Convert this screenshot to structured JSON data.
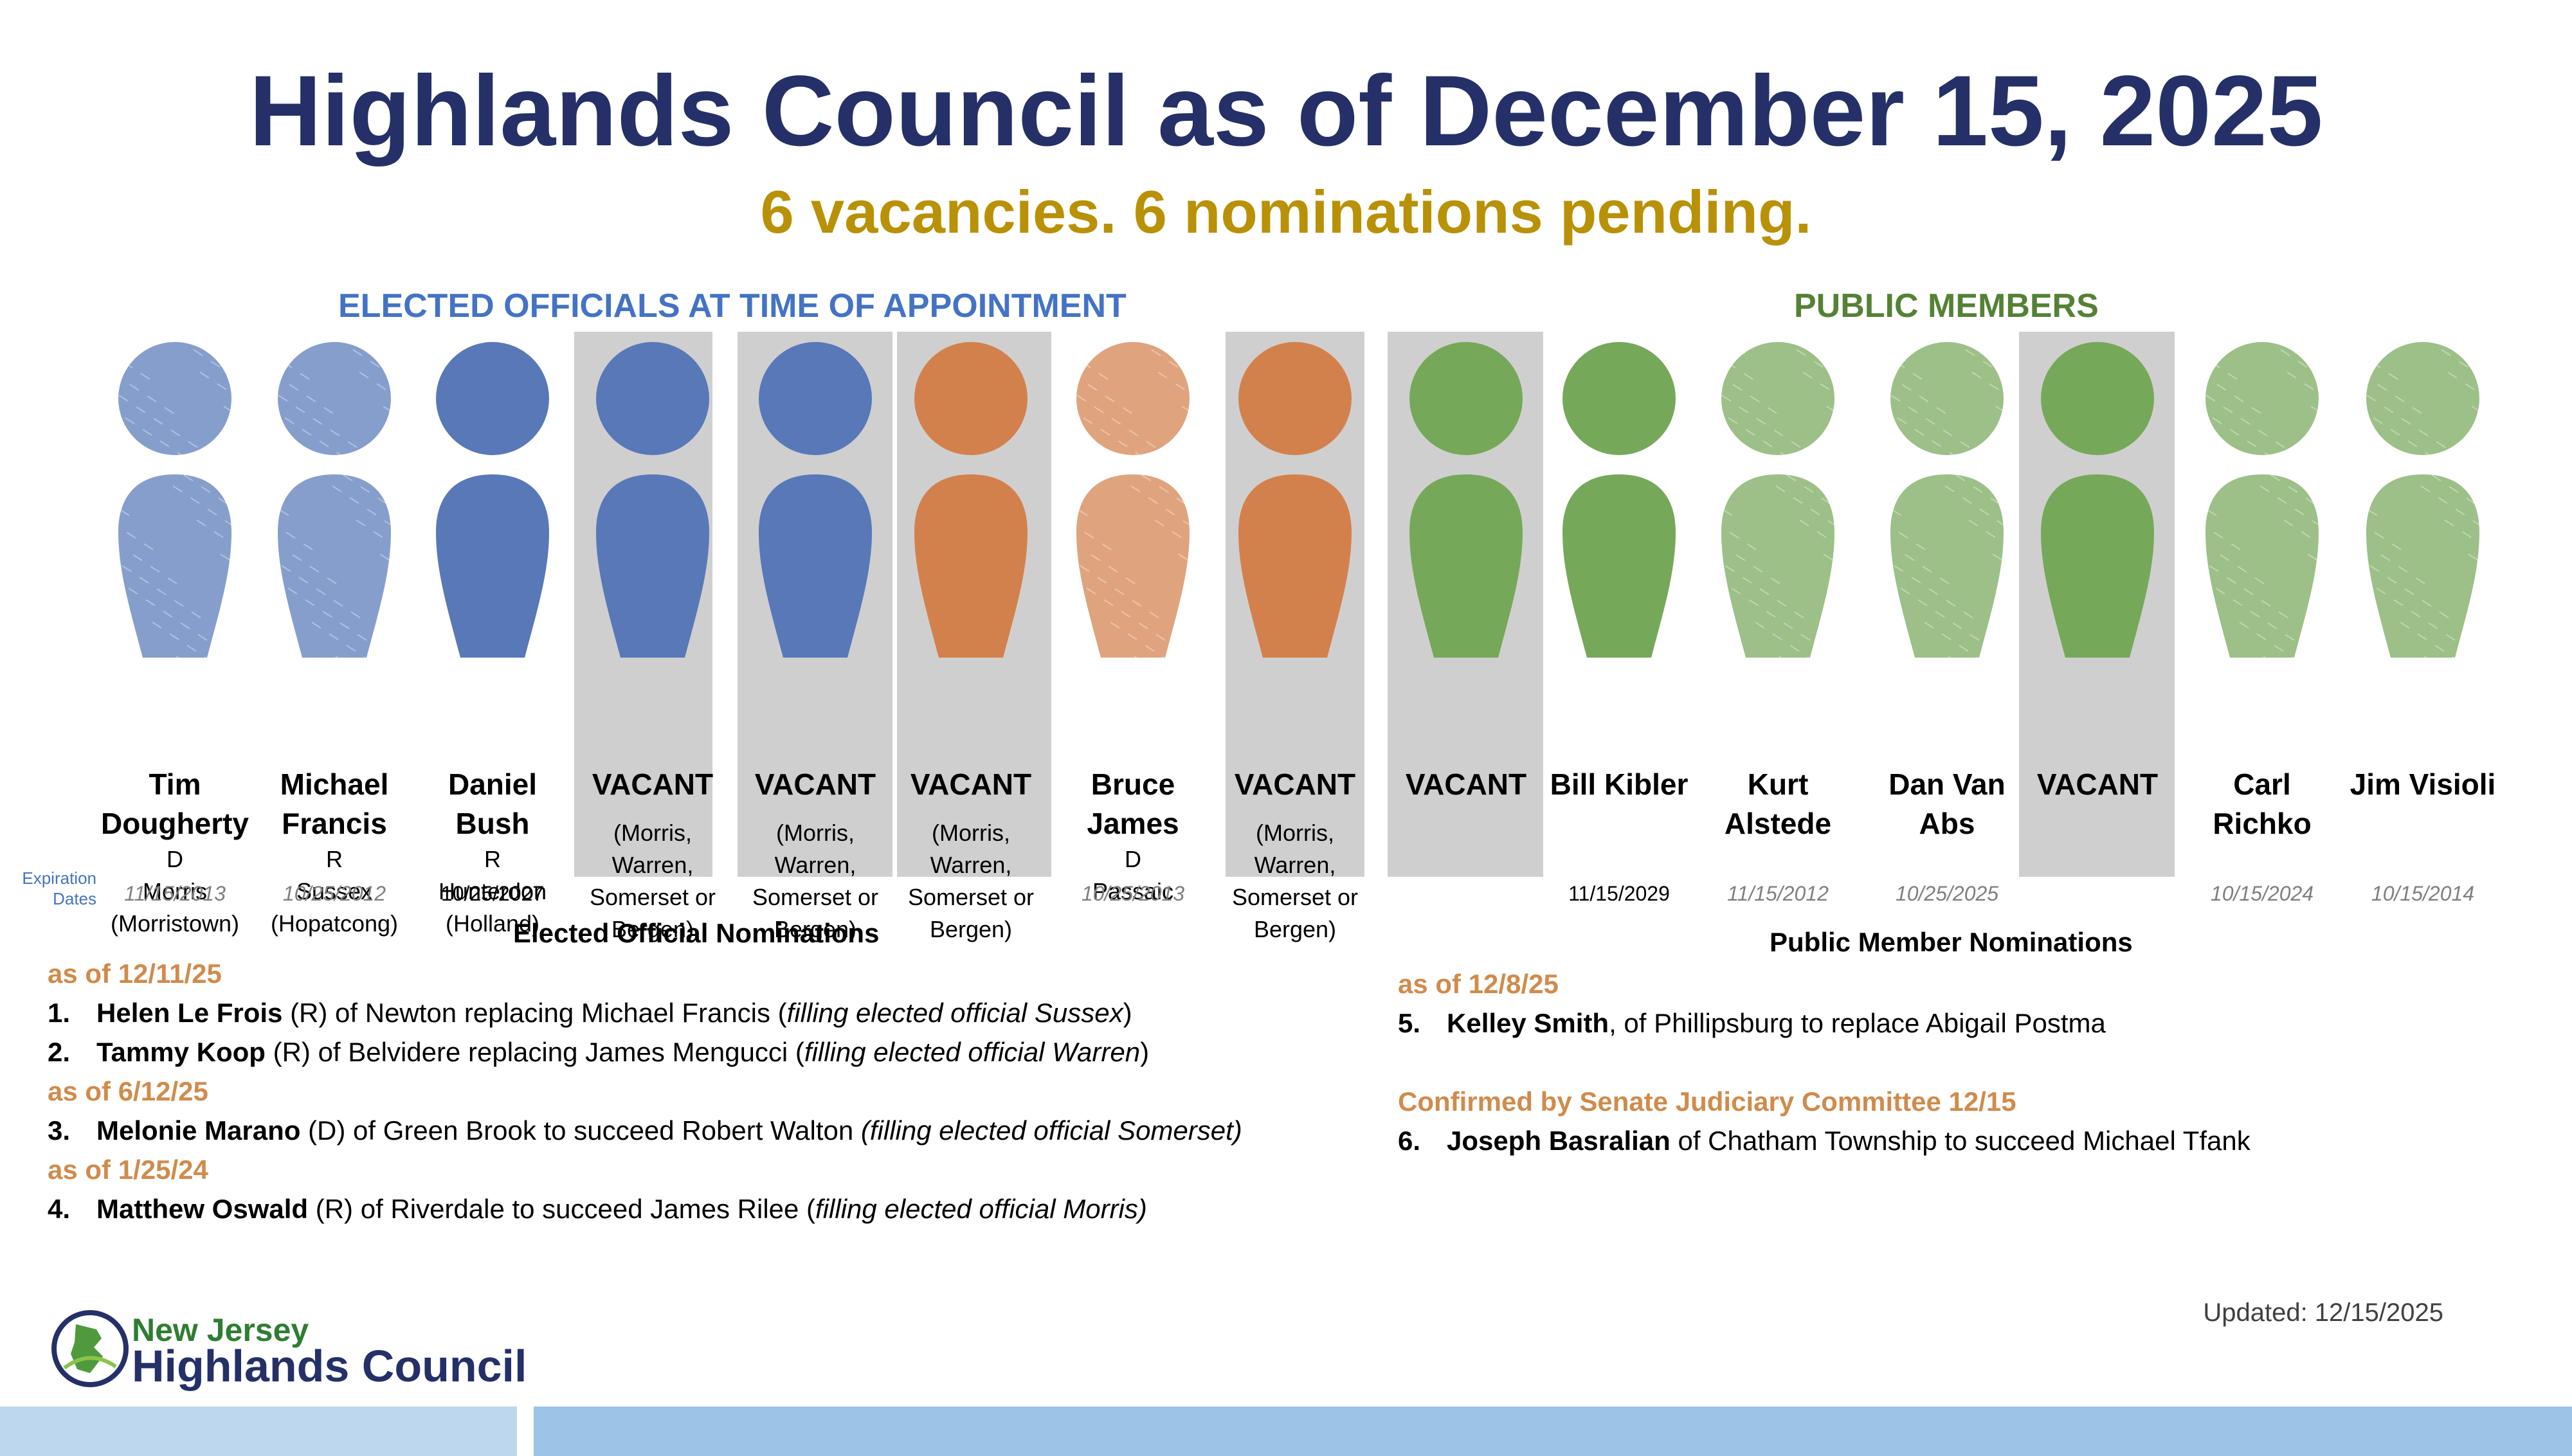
{
  "title": "Highlands Council as of December 15, 2025",
  "subtitle": "6 vacancies. 6 nominations pending.",
  "sections": {
    "elected": "ELECTED OFFICIALS AT TIME OF APPOINTMENT",
    "public": "PUBLIC MEMBERS"
  },
  "expiration_label": "Expiration Dates",
  "colors": {
    "blue": "#5878b8",
    "orange": "#d3814c",
    "green": "#76a85a",
    "title": "#253068",
    "gold": "#b99106",
    "vacant_bg": "#d0cfcf"
  },
  "members": [
    {
      "name": "Tim Dougherty",
      "party": "D",
      "detail": "Morris (Morristown)",
      "expiration": "11/15/2013",
      "color": "blue",
      "style": "textured",
      "vacant": false
    },
    {
      "name": "Michael Francis",
      "party": "R",
      "detail": "Sussex (Hopatcong)",
      "expiration": "10/25/2012",
      "color": "blue",
      "style": "textured",
      "vacant": false
    },
    {
      "name": "Daniel Bush",
      "party": "R",
      "detail": "Hunterdon (Holland)",
      "expiration": "10/25/2027",
      "color": "blue",
      "style": "solid",
      "vacant": false
    },
    {
      "name": "VACANT",
      "party": "",
      "detail": "(Morris, Warren, Somerset or Bergen)",
      "expiration": "",
      "color": "blue",
      "style": "solid",
      "vacant": true
    },
    {
      "name": "VACANT",
      "party": "",
      "detail": "(Morris, Warren, Somerset or Bergen)",
      "expiration": "",
      "color": "blue",
      "style": "solid",
      "vacant": true
    },
    {
      "name": "VACANT",
      "party": "",
      "detail": "(Morris, Warren, Somerset or Bergen)",
      "expiration": "",
      "color": "orange",
      "style": "solid",
      "vacant": true
    },
    {
      "name": "Bruce James",
      "party": "D",
      "detail": "Passaic",
      "expiration": "10/25/2013",
      "color": "orange",
      "style": "textured",
      "vacant": false
    },
    {
      "name": "VACANT",
      "party": "",
      "detail": "(Morris, Warren, Somerset or Bergen)",
      "expiration": "",
      "color": "orange",
      "style": "solid",
      "vacant": true
    },
    {
      "name": "VACANT",
      "party": "",
      "detail": "",
      "expiration": "",
      "color": "green",
      "style": "solid",
      "vacant": true
    },
    {
      "name": "Bill Kibler",
      "party": "",
      "detail": "",
      "expiration": "11/15/2029",
      "color": "green",
      "style": "solid",
      "vacant": false
    },
    {
      "name": "Kurt Alstede",
      "party": "",
      "detail": "",
      "expiration": "11/15/2012",
      "color": "green",
      "style": "textured",
      "vacant": false
    },
    {
      "name": "Dan Van Abs",
      "party": "",
      "detail": "",
      "expiration": "10/25/2025",
      "color": "green",
      "style": "textured",
      "vacant": false
    },
    {
      "name": "VACANT",
      "party": "",
      "detail": "",
      "expiration": "",
      "color": "green",
      "style": "solid",
      "vacant": true
    },
    {
      "name": "Carl Richko",
      "party": "",
      "detail": "",
      "expiration": "10/15/2024",
      "color": "green",
      "style": "textured",
      "vacant": false
    },
    {
      "name": "Jim Visioli",
      "party": "",
      "detail": "",
      "expiration": "10/15/2014",
      "color": "green",
      "style": "textured",
      "vacant": false
    }
  ],
  "elected_nominations": {
    "heading": "Elected Official Nominations",
    "groups": [
      {
        "date": "as of 12/11/25",
        "items": [
          {
            "num": "1.",
            "name": "Helen Le Frois",
            "text": " (R) of Newton replacing Michael Francis (",
            "italic": "filling elected official Sussex",
            "tail": ")"
          },
          {
            "num": "2.",
            "name": "Tammy Koop",
            "text": " (R) of Belvidere replacing James Mengucci (",
            "italic": "filling elected official Warren",
            "tail": ")"
          }
        ]
      },
      {
        "date": "as of 6/12/25",
        "items": [
          {
            "num": "3.",
            "name": "Melonie Marano",
            "text": " (D) of Green Brook to succeed Robert Walton ",
            "italic": "(filling elected official Somerset)",
            "tail": ""
          }
        ]
      },
      {
        "date": "as of 1/25/24",
        "items": [
          {
            "num": "4.",
            "name": "Matthew Oswald",
            "text": " (R) of Riverdale to succeed James Rilee (",
            "italic": "filling elected official Morris)",
            "tail": ""
          }
        ]
      }
    ]
  },
  "public_nominations": {
    "heading": "Public Member Nominations",
    "groups": [
      {
        "date": "as of 12/8/25",
        "items": [
          {
            "num": "5.",
            "name": "Kelley Smith",
            "text": ", of Phillipsburg to replace Abigail Postma",
            "italic": "",
            "tail": ""
          }
        ]
      },
      {
        "date": "Confirmed by Senate Judiciary Committee 12/15",
        "items": [
          {
            "num": "6.",
            "name": "Joseph Basralian",
            "text": " of Chatham Township to succeed Michael Tfank",
            "italic": "",
            "tail": ""
          }
        ]
      }
    ]
  },
  "updated": "Updated: 12/15/2025",
  "logo": {
    "line1": "New Jersey",
    "line2": "Highlands Council"
  }
}
